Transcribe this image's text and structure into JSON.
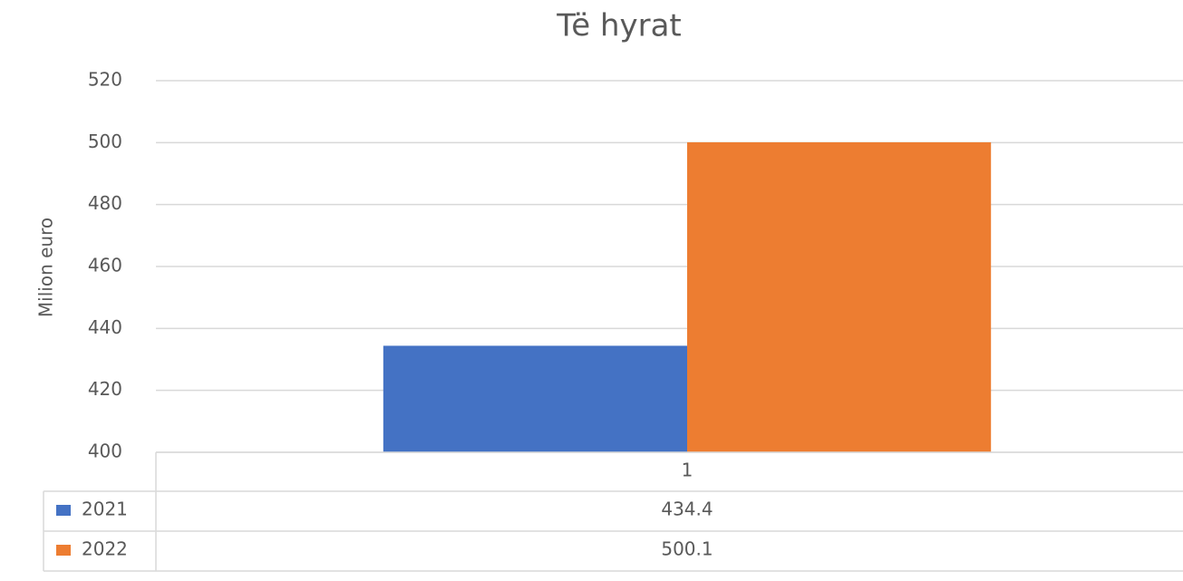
{
  "chart_data": {
    "type": "bar",
    "title": "Të hyrat",
    "y_label": "Milion euro",
    "categories": [
      "1"
    ],
    "series": [
      {
        "name": "2021",
        "color": "#4472c4",
        "values": [
          434.4
        ]
      },
      {
        "name": "2022",
        "color": "#ed7d31",
        "values": [
          500.1
        ]
      }
    ],
    "ylim": [
      400,
      520
    ],
    "yticks": [
      400,
      420,
      440,
      460,
      480,
      500,
      520
    ],
    "grid": true,
    "data_table": true
  }
}
